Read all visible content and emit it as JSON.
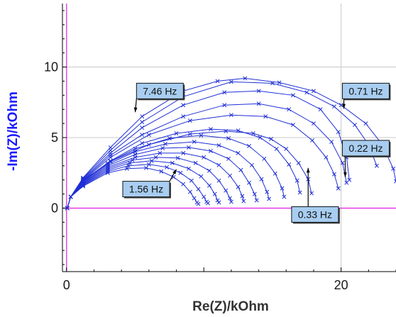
{
  "chart_data": {
    "type": "scatter",
    "title": "",
    "xlabel": "Re(Z)/kOhm",
    "ylabel": "-Im(Z)/kOhm",
    "xlim": [
      -0.3,
      24
    ],
    "ylim": [
      -4.5,
      14.5
    ],
    "x_ticks": [
      0,
      20
    ],
    "x_tick_labels": [
      "0",
      "20"
    ],
    "y_ticks": [
      0,
      5,
      10
    ],
    "y_tick_labels": [
      "0",
      "5",
      "10"
    ],
    "grid": true,
    "legend": "none",
    "colors": {
      "series": "#1f2fd6",
      "axis_title": "#1a1aff",
      "zero_lines": "#e020e0",
      "grid": "#c8c8c8",
      "annotation_fill": "#a8cdf0"
    },
    "series": [
      {
        "values": [
          [
            0.05,
            0.0
          ],
          [
            0.3,
            0.8
          ],
          [
            1.2,
            1.95
          ],
          [
            3.2,
            3.3
          ],
          [
            6.0,
            4.5
          ],
          [
            9.0,
            5.25
          ],
          [
            11.6,
            5.45
          ],
          [
            13.6,
            5.3
          ],
          [
            14.9,
            4.9
          ],
          [
            16.0,
            4.2
          ],
          [
            16.9,
            3.2
          ],
          [
            17.6,
            2.05
          ],
          [
            17.85,
            1.05
          ]
        ]
      },
      {
        "values": [
          [
            0.05,
            0.0
          ],
          [
            0.3,
            0.8
          ],
          [
            1.2,
            1.95
          ],
          [
            3.2,
            3.35
          ],
          [
            5.5,
            4.6
          ],
          [
            8.0,
            5.3
          ],
          [
            10.5,
            5.6
          ],
          [
            12.5,
            5.5
          ],
          [
            14.1,
            5.0
          ],
          [
            15.3,
            4.2
          ],
          [
            16.2,
            3.1
          ],
          [
            16.8,
            1.95
          ],
          [
            17.0,
            1.1
          ]
        ]
      },
      {
        "values": [
          [
            0.05,
            0.0
          ],
          [
            0.3,
            0.8
          ],
          [
            1.2,
            1.9
          ],
          [
            3.0,
            3.2
          ],
          [
            5.0,
            4.2
          ],
          [
            7.5,
            4.95
          ],
          [
            9.8,
            5.15
          ],
          [
            11.8,
            4.95
          ],
          [
            13.3,
            4.4
          ],
          [
            14.4,
            3.5
          ],
          [
            15.2,
            2.45
          ],
          [
            15.7,
            1.4
          ],
          [
            15.85,
            0.8
          ]
        ]
      },
      {
        "values": [
          [
            0.05,
            0.0
          ],
          [
            0.3,
            0.8
          ],
          [
            1.2,
            1.85
          ],
          [
            3.0,
            3.1
          ],
          [
            5.0,
            4.0
          ],
          [
            7.2,
            4.55
          ],
          [
            9.3,
            4.7
          ],
          [
            11.1,
            4.45
          ],
          [
            12.5,
            3.9
          ],
          [
            13.5,
            3.05
          ],
          [
            14.2,
            2.05
          ],
          [
            14.6,
            1.15
          ],
          [
            14.75,
            0.65
          ]
        ]
      },
      {
        "values": [
          [
            0.05,
            0.0
          ],
          [
            0.3,
            0.8
          ],
          [
            1.2,
            1.8
          ],
          [
            3.0,
            3.0
          ],
          [
            5.0,
            3.8
          ],
          [
            7.0,
            4.25
          ],
          [
            8.9,
            4.3
          ],
          [
            10.5,
            4.05
          ],
          [
            11.8,
            3.5
          ],
          [
            12.7,
            2.7
          ],
          [
            13.3,
            1.8
          ],
          [
            13.7,
            1.0
          ],
          [
            13.85,
            0.55
          ]
        ]
      },
      {
        "values": [
          [
            0.05,
            0.0
          ],
          [
            0.3,
            0.8
          ],
          [
            1.2,
            1.75
          ],
          [
            3.0,
            2.9
          ],
          [
            5.0,
            3.6
          ],
          [
            6.8,
            3.9
          ],
          [
            8.5,
            3.9
          ],
          [
            10.0,
            3.6
          ],
          [
            11.1,
            3.05
          ],
          [
            11.9,
            2.3
          ],
          [
            12.5,
            1.5
          ],
          [
            12.8,
            0.85
          ],
          [
            12.9,
            0.5
          ]
        ]
      },
      {
        "values": [
          [
            0.05,
            0.0
          ],
          [
            0.3,
            0.8
          ],
          [
            1.2,
            1.7
          ],
          [
            3.0,
            2.8
          ],
          [
            4.8,
            3.4
          ],
          [
            6.5,
            3.6
          ],
          [
            8.1,
            3.55
          ],
          [
            9.4,
            3.2
          ],
          [
            10.4,
            2.65
          ],
          [
            11.1,
            1.95
          ],
          [
            11.6,
            1.25
          ],
          [
            11.9,
            0.7
          ],
          [
            12.0,
            0.45
          ]
        ]
      },
      {
        "values": [
          [
            0.05,
            0.0
          ],
          [
            0.3,
            0.8
          ],
          [
            1.2,
            1.65
          ],
          [
            3.0,
            2.7
          ],
          [
            4.6,
            3.2
          ],
          [
            6.2,
            3.35
          ],
          [
            7.7,
            3.2
          ],
          [
            8.9,
            2.8
          ],
          [
            9.8,
            2.25
          ],
          [
            10.4,
            1.6
          ],
          [
            10.8,
            1.0
          ],
          [
            11.0,
            0.55
          ],
          [
            11.1,
            0.4
          ]
        ]
      },
      {
        "values": [
          [
            0.05,
            0.0
          ],
          [
            0.3,
            0.8
          ],
          [
            1.2,
            1.6
          ],
          [
            3.0,
            2.6
          ],
          [
            4.5,
            3.0
          ],
          [
            6.0,
            3.1
          ],
          [
            7.3,
            2.9
          ],
          [
            8.3,
            2.5
          ],
          [
            9.1,
            1.95
          ],
          [
            9.6,
            1.35
          ],
          [
            10.0,
            0.8
          ],
          [
            10.2,
            0.45
          ],
          [
            10.3,
            0.35
          ]
        ]
      },
      {
        "values": [
          [
            0.05,
            0.0
          ],
          [
            0.3,
            0.8
          ],
          [
            1.2,
            1.55
          ],
          [
            3.0,
            2.5
          ],
          [
            4.4,
            2.8
          ],
          [
            5.8,
            2.85
          ],
          [
            6.9,
            2.6
          ],
          [
            7.8,
            2.2
          ],
          [
            8.5,
            1.7
          ],
          [
            9.0,
            1.15
          ],
          [
            9.3,
            0.7
          ],
          [
            9.5,
            0.4
          ],
          [
            9.6,
            0.3
          ]
        ]
      },
      {
        "values": [
          [
            0.05,
            0.0
          ],
          [
            0.3,
            0.8
          ],
          [
            1.2,
            1.95
          ],
          [
            3.2,
            3.6
          ],
          [
            6.0,
            5.2
          ],
          [
            9.0,
            6.2
          ],
          [
            12.0,
            6.6
          ],
          [
            14.5,
            6.5
          ],
          [
            16.5,
            5.9
          ],
          [
            17.9,
            4.8
          ],
          [
            18.9,
            3.6
          ],
          [
            19.5,
            2.4
          ],
          [
            19.8,
            1.4
          ]
        ]
      },
      {
        "values": [
          [
            0.05,
            0.0
          ],
          [
            0.3,
            0.8
          ],
          [
            1.2,
            2.0
          ],
          [
            3.2,
            3.75
          ],
          [
            5.5,
            5.2
          ],
          [
            8.5,
            6.5
          ],
          [
            11.5,
            7.3
          ],
          [
            14.0,
            7.4
          ],
          [
            16.2,
            7.0
          ],
          [
            18.0,
            6.0
          ],
          [
            19.3,
            4.7
          ],
          [
            20.1,
            3.2
          ],
          [
            20.4,
            1.8
          ]
        ]
      },
      {
        "values": [
          [
            0.05,
            0.0
          ],
          [
            0.3,
            0.8
          ],
          [
            1.2,
            2.05
          ],
          [
            3.2,
            3.9
          ],
          [
            5.5,
            5.7
          ],
          [
            8.5,
            7.3
          ],
          [
            11.5,
            8.2
          ],
          [
            14.0,
            8.3
          ],
          [
            16.5,
            8.0
          ],
          [
            18.5,
            7.0
          ],
          [
            19.8,
            5.4
          ],
          [
            20.4,
            3.6
          ],
          [
            20.6,
            2.0
          ]
        ]
      },
      {
        "values": [
          [
            0.05,
            0.0
          ],
          [
            0.3,
            0.8
          ],
          [
            1.2,
            2.1
          ],
          [
            3.2,
            4.1
          ],
          [
            5.5,
            6.1
          ],
          [
            8.5,
            7.9
          ],
          [
            12.0,
            8.95
          ],
          [
            15.0,
            8.85
          ],
          [
            17.5,
            8.2
          ],
          [
            19.5,
            7.2
          ],
          [
            21.0,
            5.9
          ],
          [
            22.0,
            4.5
          ],
          [
            22.6,
            3.0
          ]
        ]
      },
      {
        "values": [
          [
            0.05,
            0.0
          ],
          [
            0.3,
            0.8
          ],
          [
            1.2,
            2.15
          ],
          [
            3.2,
            4.3
          ],
          [
            5.5,
            6.5
          ],
          [
            8.5,
            8.3
          ],
          [
            11.0,
            9.0
          ],
          [
            13.0,
            9.2
          ],
          [
            15.5,
            8.9
          ],
          [
            18.0,
            8.3
          ],
          [
            20.0,
            7.3
          ],
          [
            21.8,
            6.0
          ],
          [
            23.0,
            4.5
          ],
          [
            23.8,
            2.8
          ],
          [
            24.0,
            1.9
          ]
        ]
      }
    ],
    "annotations": [
      {
        "text": "7.46 Hz",
        "point": [
          5.0,
          6.8
        ],
        "label_pos": [
          6.8,
          8.3
        ]
      },
      {
        "text": "0.71 Hz",
        "point": [
          20.2,
          7.05
        ],
        "label_pos": [
          21.8,
          8.3
        ]
      },
      {
        "text": "0.22 Hz",
        "point": [
          20.3,
          2.2
        ],
        "label_pos": [
          21.8,
          4.25
        ]
      },
      {
        "text": "1.56 Hz",
        "point": [
          8.0,
          2.75
        ],
        "label_pos": [
          5.8,
          1.35
        ]
      },
      {
        "text": "0.33 Hz",
        "point": [
          17.6,
          2.85
        ],
        "label_pos": [
          18.1,
          -0.45
        ]
      }
    ]
  }
}
